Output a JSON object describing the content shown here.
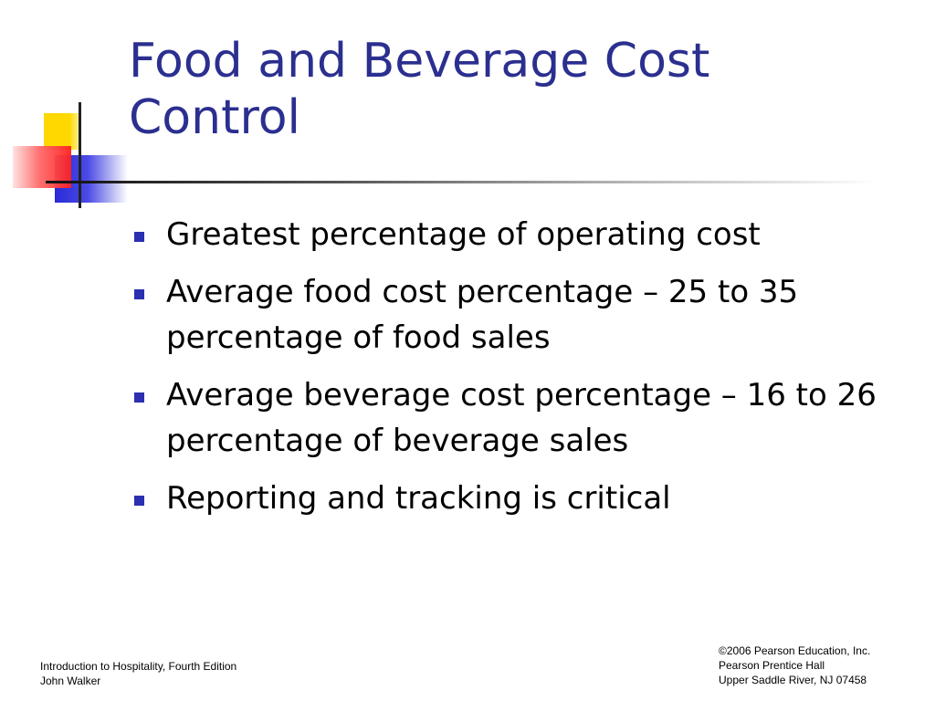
{
  "slide": {
    "title": "Food and Beverage Cost Control",
    "bullets": [
      "Greatest percentage of operating cost",
      "Average food cost percentage – 25 to 35 percentage of food sales",
      "Average beverage cost percentage – 16 to 26 percentage of beverage sales",
      "Reporting and tracking is critical"
    ],
    "bullet_icon": "square-bullet-icon",
    "colors": {
      "title": "#2b2f8f",
      "bullet": "#2b2fb0",
      "deco_yellow": "#ffd800",
      "deco_blue": "#2a2ad8",
      "deco_red": "#ff2020"
    }
  },
  "footer": {
    "left": [
      "Introduction to Hospitality, Fourth Edition",
      "John Walker"
    ],
    "right": [
      "©2006 Pearson Education, Inc.",
      "Pearson Prentice Hall",
      "Upper Saddle River, NJ 07458"
    ]
  }
}
